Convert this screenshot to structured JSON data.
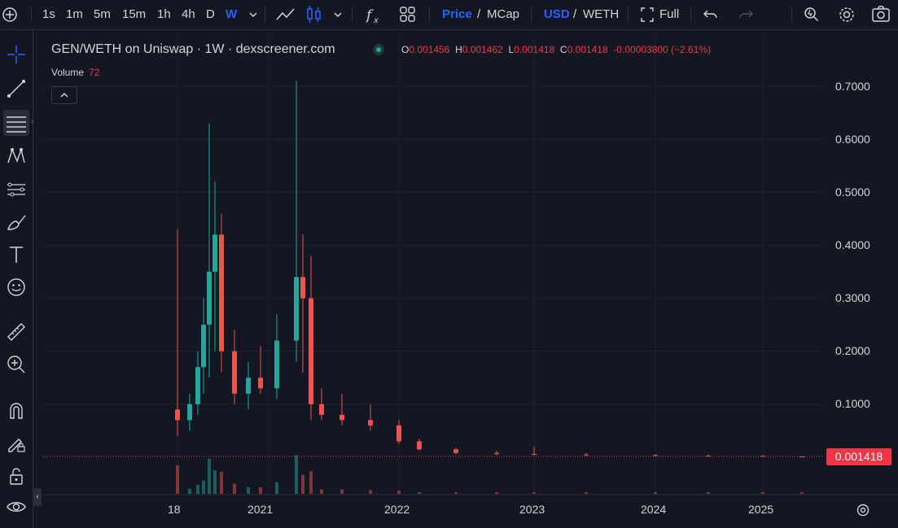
{
  "toolbar": {
    "intervals": [
      "1s",
      "1m",
      "5m",
      "15m",
      "1h",
      "4h",
      "D",
      "W"
    ],
    "active_interval": "W",
    "price_label": "Price",
    "slash1": "/",
    "mcap_label": "MCap",
    "usd_label": "USD",
    "slash2": "/",
    "weth_label": "WETH",
    "full_label": "Full"
  },
  "legend": {
    "title": "GEN/WETH on Uniswap · 1W · dexscreener.com",
    "o_label": "O",
    "o": "0.001456",
    "h_label": "H",
    "h": "0.001462",
    "l_label": "L",
    "l": "0.001418",
    "c_label": "C",
    "c": "0.001418",
    "change": "-0.00003800 (−2.61%)",
    "volume_label": "Volume",
    "volume": "72"
  },
  "colors": {
    "up": "#26a69a",
    "down": "#ef5350",
    "bg": "#131722",
    "accent": "#2962ff",
    "last": "#f23645"
  },
  "chart_data": {
    "type": "candlestick",
    "title": "GEN/WETH on Uniswap · 1W · dexscreener.com",
    "y_ticks": [
      "0.7000",
      "0.6000",
      "0.5000",
      "0.4000",
      "0.3000",
      "0.2000",
      "0.1000"
    ],
    "x_ticks": [
      "18",
      "2021",
      "2022",
      "2023",
      "2024",
      "2025"
    ],
    "ylim": [
      0,
      0.7
    ],
    "last_price": "0.001418",
    "candles": [
      {
        "t": "2020-06",
        "o": 0.09,
        "h": 0.43,
        "l": 0.04,
        "c": 0.07
      },
      {
        "t": "2020-07",
        "o": 0.07,
        "h": 0.12,
        "l": 0.05,
        "c": 0.1
      },
      {
        "t": "2020-08",
        "o": 0.1,
        "h": 0.2,
        "l": 0.08,
        "c": 0.17
      },
      {
        "t": "2020-09",
        "o": 0.17,
        "h": 0.3,
        "l": 0.12,
        "c": 0.25
      },
      {
        "t": "2020-10",
        "o": 0.25,
        "h": 0.63,
        "l": 0.15,
        "c": 0.35
      },
      {
        "t": "2020-10b",
        "o": 0.35,
        "h": 0.52,
        "l": 0.2,
        "c": 0.42
      },
      {
        "t": "2020-11",
        "o": 0.42,
        "h": 0.46,
        "l": 0.16,
        "c": 0.2
      },
      {
        "t": "2020-12",
        "o": 0.2,
        "h": 0.24,
        "l": 0.1,
        "c": 0.12
      },
      {
        "t": "2021-01",
        "o": 0.12,
        "h": 0.18,
        "l": 0.09,
        "c": 0.15
      },
      {
        "t": "2021-02",
        "o": 0.15,
        "h": 0.21,
        "l": 0.12,
        "c": 0.13
      },
      {
        "t": "2021-03",
        "o": 0.13,
        "h": 0.27,
        "l": 0.11,
        "c": 0.22
      },
      {
        "t": "2021-04",
        "o": 0.22,
        "h": 0.71,
        "l": 0.18,
        "c": 0.34
      },
      {
        "t": "2021-05",
        "o": 0.34,
        "h": 0.42,
        "l": 0.16,
        "c": 0.3
      },
      {
        "t": "2021-06",
        "o": 0.3,
        "h": 0.38,
        "l": 0.07,
        "c": 0.1
      },
      {
        "t": "2021-07",
        "o": 0.1,
        "h": 0.13,
        "l": 0.07,
        "c": 0.08
      },
      {
        "t": "2021-09",
        "o": 0.08,
        "h": 0.12,
        "l": 0.06,
        "c": 0.07
      },
      {
        "t": "2021-11",
        "o": 0.07,
        "h": 0.1,
        "l": 0.05,
        "c": 0.06
      },
      {
        "t": "2022-01",
        "o": 0.06,
        "h": 0.07,
        "l": 0.025,
        "c": 0.03
      },
      {
        "t": "2022-03",
        "o": 0.03,
        "h": 0.035,
        "l": 0.012,
        "c": 0.015
      },
      {
        "t": "2022-06",
        "o": 0.015,
        "h": 0.018,
        "l": 0.006,
        "c": 0.008
      },
      {
        "t": "2022-10",
        "o": 0.008,
        "h": 0.012,
        "l": 0.004,
        "c": 0.006
      },
      {
        "t": "2023-01",
        "o": 0.006,
        "h": 0.02,
        "l": 0.004,
        "c": 0.005
      },
      {
        "t": "2023-06",
        "o": 0.005,
        "h": 0.008,
        "l": 0.003,
        "c": 0.004
      },
      {
        "t": "2024-01",
        "o": 0.004,
        "h": 0.006,
        "l": 0.002,
        "c": 0.003
      },
      {
        "t": "2024-06",
        "o": 0.003,
        "h": 0.005,
        "l": 0.002,
        "c": 0.0025
      },
      {
        "t": "2025-01",
        "o": 0.0025,
        "h": 0.004,
        "l": 0.0013,
        "c": 0.0016
      },
      {
        "t": "2025-04",
        "o": 0.001456,
        "h": 0.001462,
        "l": 0.001418,
        "c": 0.001418
      }
    ]
  }
}
